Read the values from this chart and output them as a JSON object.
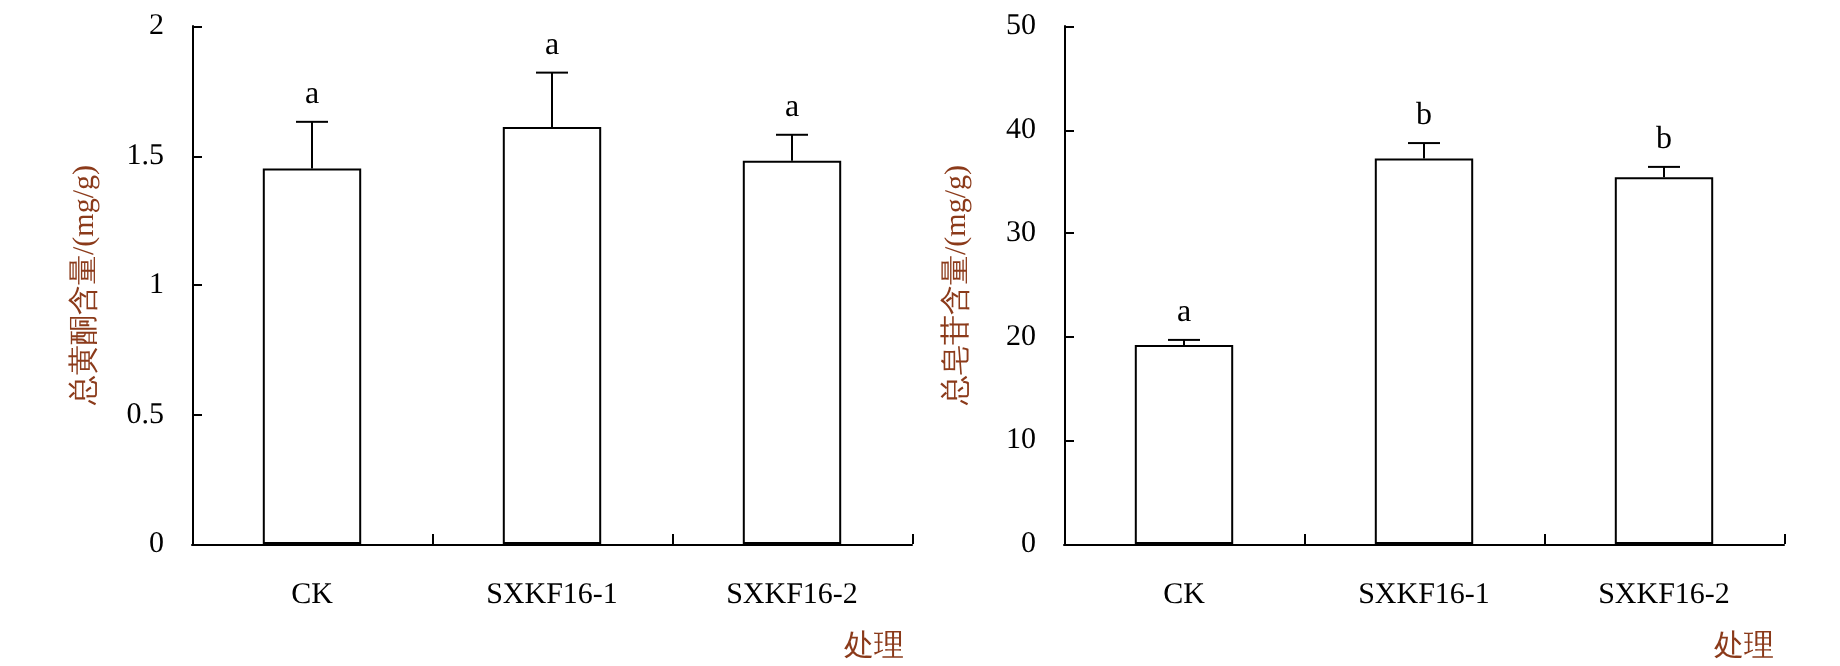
{
  "chart_data": [
    {
      "type": "bar",
      "ylabel": "总黄酮含量/(mg/g)",
      "xlabel": "处理",
      "categories": [
        "CK",
        "SXKF16-1",
        "SXKF16-2"
      ],
      "values": [
        1.45,
        1.61,
        1.48
      ],
      "color": "#ffffff",
      "errors": [
        [
          1.45,
          1.63
        ],
        [
          1.61,
          1.82
        ],
        [
          1.48,
          1.58
        ]
      ],
      "ylim": [
        0,
        2
      ],
      "yticks": [
        0,
        0.5,
        1,
        1.5,
        2
      ],
      "grid": false,
      "annotations": [
        {
          "text": "a",
          "x": "CK",
          "y": 1.63
        },
        {
          "text": "a",
          "x": "SXKF16-1",
          "y": 1.82
        },
        {
          "text": "a",
          "x": "SXKF16-2",
          "y": 1.58
        }
      ]
    },
    {
      "type": "bar",
      "ylabel": "总皂苷含量/(mg/g)",
      "xlabel": "处理",
      "categories": [
        "CK",
        "SXKF16-1",
        "SXKF16-2"
      ],
      "values": [
        19.2,
        37.2,
        35.4
      ],
      "color": "#ffffff",
      "errors": [
        [
          19.2,
          19.7
        ],
        [
          37.2,
          38.7
        ],
        [
          35.4,
          36.4
        ]
      ],
      "ylim": [
        0,
        50
      ],
      "yticks": [
        0,
        10,
        20,
        30,
        40,
        50
      ],
      "grid": false,
      "annotations": [
        {
          "text": "a",
          "x": "CK",
          "y": 19.7
        },
        {
          "text": "b",
          "x": "SXKF16-1",
          "y": 38.7
        },
        {
          "text": "b",
          "x": "SXKF16-2",
          "y": 36.4
        }
      ]
    }
  ]
}
